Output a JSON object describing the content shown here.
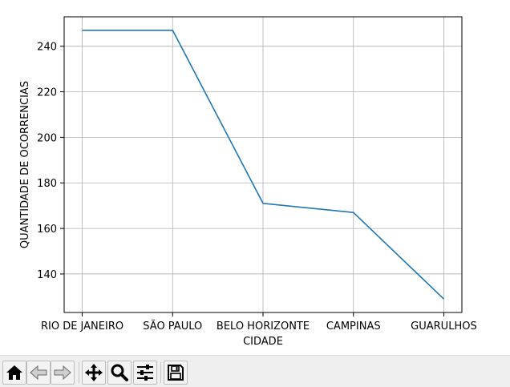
{
  "chart_data": {
    "type": "line",
    "categories": [
      "RIO DE JANEIRO",
      "SÃO PAULO",
      "BELO HORIZONTE",
      "CAMPINAS",
      "GUARULHOS"
    ],
    "series": [
      {
        "values": [
          247,
          247,
          171,
          167,
          129
        ],
        "color": "#1f77b4"
      }
    ],
    "xlabel": "CIDADE",
    "ylabel": "QUANTIDADE DE OCORRENCIAS",
    "yticks": [
      140,
      160,
      180,
      200,
      220,
      240
    ],
    "ylim": [
      123.1,
      252.9
    ],
    "grid": true
  },
  "toolbar": {
    "buttons": [
      {
        "name": "home-button",
        "icon": "home-icon"
      },
      {
        "name": "back-button",
        "icon": "arrow-left-icon"
      },
      {
        "name": "forward-button",
        "icon": "arrow-right-icon"
      },
      {
        "name": "pan-button",
        "icon": "move-icon"
      },
      {
        "name": "zoom-button",
        "icon": "magnifier-icon"
      },
      {
        "name": "configure-subplots-button",
        "icon": "sliders-icon"
      },
      {
        "name": "save-button",
        "icon": "floppy-disk-icon"
      }
    ]
  }
}
